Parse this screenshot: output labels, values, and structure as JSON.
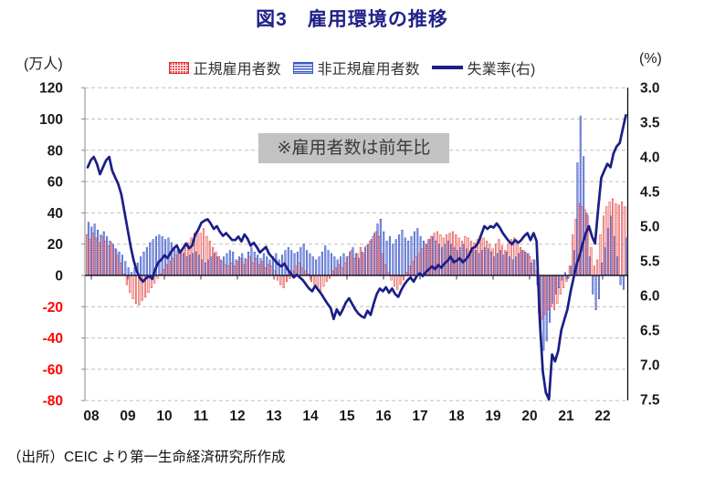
{
  "title": "図3　雇用環境の推移",
  "annotation": "※雇用者数は前年比",
  "source": "（出所）CEIC より第一生命経済研究所作成",
  "axes": {
    "left_unit": "(万人)",
    "right_unit": "(%)"
  },
  "legend": {
    "items": [
      {
        "label": "正規雇用者数",
        "swatch": "red-dotted-bar"
      },
      {
        "label": "非正規雇用者数",
        "swatch": "blue-striped-bar"
      },
      {
        "label": "失業率(右)",
        "swatch": "navy-line"
      }
    ]
  },
  "colors": {
    "title": "#212189",
    "line": "#1B1F87",
    "bar_regular_border": "#E03030",
    "bar_nonregular_border": "#3A56C8",
    "annotation_bg": "#C2C2C2",
    "negative_tick_label": "#FF0000",
    "positive_tick_label": "#1a1a1a",
    "gridline": "#BFBFBF"
  },
  "chart_data": {
    "type": "bar+line",
    "frequency": "monthly",
    "x_start": "2008-01",
    "x_end": "2022-08",
    "x_tick_labels": [
      "08",
      "09",
      "10",
      "11",
      "12",
      "13",
      "14",
      "15",
      "16",
      "17",
      "18",
      "19",
      "20",
      "21",
      "22"
    ],
    "left_axis": {
      "label": "(万人)",
      "ticks": [
        120,
        100,
        80,
        60,
        40,
        20,
        0,
        -20,
        -40,
        -60,
        -80
      ],
      "range": [
        -80,
        120
      ]
    },
    "right_axis": {
      "label": "(%)",
      "ticks": [
        "3.0",
        "3.5",
        "4.0",
        "4.5",
        "5.0",
        "5.5",
        "6.0",
        "6.5",
        "7.0",
        "7.5"
      ],
      "range": [
        3.0,
        7.5
      ],
      "inverted": true
    },
    "series": [
      {
        "name": "正規雇用者数",
        "type": "bar",
        "axis": "left",
        "values": [
          26,
          23,
          27,
          24,
          21,
          25,
          22,
          19,
          21,
          17,
          13,
          8,
          1,
          -6,
          -11,
          -15,
          -18,
          -19,
          -16,
          -14,
          -11,
          -8,
          -5,
          -2,
          1,
          4,
          7,
          9,
          11,
          13,
          15,
          17,
          19,
          21,
          24,
          27,
          29,
          27,
          30,
          25,
          22,
          18,
          15,
          12,
          9,
          7,
          6,
          8,
          6,
          9,
          11,
          7,
          10,
          12,
          8,
          11,
          7,
          9,
          5,
          7,
          6,
          3,
          -3,
          -6,
          -8,
          -4,
          -2,
          3,
          6,
          8,
          5,
          3,
          1,
          -4,
          -6,
          -9,
          -11,
          -7,
          -4,
          -2,
          3,
          5,
          7,
          5,
          8,
          12,
          16,
          11,
          14,
          18,
          14,
          19,
          22,
          25,
          28,
          25,
          14,
          7,
          2,
          -3,
          -7,
          -9,
          -6,
          -3,
          2,
          6,
          9,
          12,
          14,
          17,
          20,
          23,
          25,
          27,
          28,
          26,
          24,
          26,
          27,
          28,
          26,
          24,
          22,
          25,
          24,
          22,
          21,
          23,
          25,
          24,
          22,
          20,
          17,
          20,
          23,
          19,
          16,
          20,
          23,
          24,
          21,
          18,
          16,
          14,
          12,
          10,
          3,
          -24,
          -28,
          -25,
          -22,
          -20,
          -22,
          -18,
          -12,
          -8,
          -4,
          6,
          26,
          36,
          46,
          44,
          42,
          38,
          18,
          6,
          10,
          26,
          38,
          44,
          47,
          49,
          46,
          45,
          47,
          44
        ]
      },
      {
        "name": "非正規雇用者数",
        "type": "bar",
        "axis": "left",
        "values": [
          34,
          31,
          33,
          29,
          26,
          28,
          25,
          22,
          20,
          17,
          15,
          13,
          9,
          5,
          2,
          5,
          8,
          12,
          15,
          18,
          21,
          23,
          25,
          26,
          25,
          23,
          24,
          21,
          18,
          16,
          15,
          14,
          12,
          13,
          14,
          15,
          13,
          10,
          8,
          10,
          12,
          14,
          12,
          10,
          12,
          14,
          16,
          15,
          10,
          12,
          14,
          11,
          15,
          18,
          15,
          13,
          11,
          14,
          12,
          10,
          12,
          14,
          10,
          13,
          16,
          18,
          16,
          14,
          15,
          18,
          20,
          16,
          14,
          12,
          10,
          12,
          15,
          19,
          16,
          14,
          12,
          10,
          12,
          14,
          12,
          15,
          18,
          14,
          11,
          15,
          18,
          20,
          23,
          27,
          33,
          36,
          28,
          22,
          25,
          20,
          23,
          26,
          29,
          24,
          22,
          25,
          28,
          30,
          25,
          22,
          20,
          23,
          25,
          22,
          20,
          18,
          20,
          22,
          20,
          18,
          16,
          18,
          20,
          17,
          15,
          18,
          16,
          14,
          16,
          18,
          17,
          15,
          12,
          14,
          16,
          13,
          15,
          12,
          10,
          12,
          14,
          16,
          15,
          14,
          8,
          10,
          -6,
          -38,
          -48,
          -42,
          -30,
          -18,
          -12,
          -8,
          -3,
          2,
          -2,
          6,
          16,
          72,
          102,
          76,
          40,
          12,
          -12,
          -22,
          -15,
          8,
          18,
          30,
          38,
          25,
          12,
          -6,
          -9,
          24
        ]
      },
      {
        "name": "失業率(右)",
        "type": "line",
        "axis": "right",
        "values": [
          4.15,
          4.05,
          4.0,
          4.1,
          4.25,
          4.15,
          4.05,
          4.0,
          4.2,
          4.3,
          4.4,
          4.55,
          4.8,
          5.05,
          5.3,
          5.5,
          5.65,
          5.75,
          5.8,
          5.75,
          5.72,
          5.76,
          5.62,
          5.52,
          5.48,
          5.42,
          5.46,
          5.38,
          5.32,
          5.28,
          5.38,
          5.32,
          5.25,
          5.32,
          5.28,
          5.12,
          5.05,
          4.95,
          4.92,
          4.9,
          4.96,
          5.04,
          5.0,
          5.08,
          5.14,
          5.1,
          5.15,
          5.2,
          5.2,
          5.15,
          5.22,
          5.12,
          5.18,
          5.28,
          5.24,
          5.3,
          5.38,
          5.34,
          5.3,
          5.4,
          5.45,
          5.5,
          5.55,
          5.58,
          5.54,
          5.62,
          5.68,
          5.74,
          5.7,
          5.74,
          5.78,
          5.84,
          5.9,
          5.94,
          5.86,
          5.92,
          5.98,
          6.05,
          6.12,
          6.18,
          6.34,
          6.2,
          6.28,
          6.2,
          6.1,
          6.04,
          6.12,
          6.2,
          6.26,
          6.3,
          6.32,
          6.22,
          6.28,
          6.12,
          5.98,
          5.9,
          5.94,
          5.88,
          5.96,
          5.9,
          5.98,
          6.02,
          5.92,
          5.84,
          5.78,
          5.74,
          5.8,
          5.72,
          5.68,
          5.72,
          5.66,
          5.62,
          5.58,
          5.62,
          5.56,
          5.6,
          5.54,
          5.5,
          5.44,
          5.52,
          5.5,
          5.46,
          5.52,
          5.48,
          5.42,
          5.32,
          5.3,
          5.24,
          5.12,
          5.0,
          5.04,
          5.0,
          5.02,
          4.96,
          5.02,
          5.1,
          5.16,
          5.22,
          5.26,
          5.2,
          5.24,
          5.2,
          5.14,
          5.1,
          5.2,
          5.1,
          5.22,
          6.35,
          7.1,
          7.4,
          7.5,
          6.85,
          6.95,
          6.8,
          6.5,
          6.35,
          6.2,
          5.95,
          5.75,
          5.55,
          5.42,
          5.25,
          5.1,
          5.0,
          5.15,
          5.25,
          4.75,
          4.3,
          4.2,
          4.1,
          4.15,
          3.95,
          3.85,
          3.8,
          3.6,
          3.4
        ]
      }
    ]
  }
}
